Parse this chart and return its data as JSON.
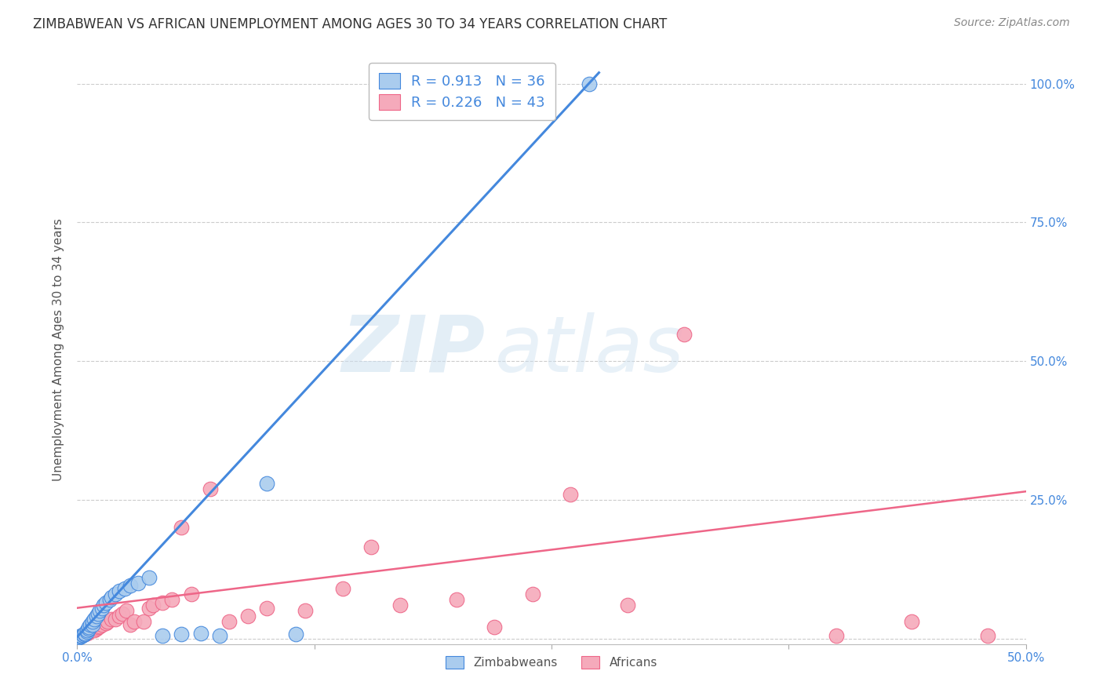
{
  "title": "ZIMBABWEAN VS AFRICAN UNEMPLOYMENT AMONG AGES 30 TO 34 YEARS CORRELATION CHART",
  "source": "Source: ZipAtlas.com",
  "ylabel": "Unemployment Among Ages 30 to 34 years",
  "xlim": [
    0.0,
    0.5
  ],
  "ylim": [
    -0.01,
    1.05
  ],
  "yticks_right": [
    0.25,
    0.5,
    0.75,
    1.0
  ],
  "ytick_right_labels": [
    "25.0%",
    "50.0%",
    "75.0%",
    "100.0%"
  ],
  "xticks": [
    0.0,
    0.125,
    0.25,
    0.375,
    0.5
  ],
  "xtick_labels": [
    "0.0%",
    "",
    "",
    "",
    "50.0%"
  ],
  "zim_color": "#aaccee",
  "afr_color": "#f5aabb",
  "zim_line_color": "#4488dd",
  "afr_line_color": "#ee6688",
  "legend_R_zim": "R = 0.913",
  "legend_N_zim": "N = 36",
  "legend_R_afr": "R = 0.226",
  "legend_N_afr": "N = 43",
  "zim_x": [
    0.001,
    0.002,
    0.002,
    0.003,
    0.003,
    0.004,
    0.004,
    0.005,
    0.005,
    0.006,
    0.006,
    0.007,
    0.008,
    0.008,
    0.009,
    0.01,
    0.011,
    0.012,
    0.013,
    0.014,
    0.015,
    0.017,
    0.018,
    0.02,
    0.022,
    0.025,
    0.028,
    0.032,
    0.038,
    0.045,
    0.055,
    0.065,
    0.075,
    0.1,
    0.115,
    0.27
  ],
  "zim_y": [
    0.002,
    0.003,
    0.005,
    0.006,
    0.007,
    0.008,
    0.01,
    0.012,
    0.015,
    0.018,
    0.02,
    0.025,
    0.025,
    0.03,
    0.035,
    0.04,
    0.045,
    0.05,
    0.055,
    0.06,
    0.065,
    0.07,
    0.075,
    0.08,
    0.085,
    0.09,
    0.095,
    0.1,
    0.11,
    0.005,
    0.008,
    0.01,
    0.005,
    0.28,
    0.008,
    1.0
  ],
  "afr_x": [
    0.003,
    0.005,
    0.006,
    0.007,
    0.008,
    0.009,
    0.01,
    0.011,
    0.012,
    0.013,
    0.015,
    0.016,
    0.018,
    0.02,
    0.022,
    0.024,
    0.026,
    0.028,
    0.03,
    0.035,
    0.038,
    0.04,
    0.045,
    0.05,
    0.055,
    0.06,
    0.07,
    0.08,
    0.09,
    0.1,
    0.12,
    0.14,
    0.155,
    0.17,
    0.2,
    0.22,
    0.24,
    0.26,
    0.29,
    0.32,
    0.4,
    0.44,
    0.48
  ],
  "afr_y": [
    0.006,
    0.01,
    0.012,
    0.015,
    0.018,
    0.015,
    0.018,
    0.02,
    0.022,
    0.025,
    0.028,
    0.03,
    0.035,
    0.035,
    0.04,
    0.045,
    0.05,
    0.025,
    0.03,
    0.03,
    0.055,
    0.06,
    0.065,
    0.07,
    0.2,
    0.08,
    0.27,
    0.03,
    0.04,
    0.055,
    0.05,
    0.09,
    0.165,
    0.06,
    0.07,
    0.02,
    0.08,
    0.26,
    0.06,
    0.548,
    0.005,
    0.03,
    0.005
  ],
  "zim_trend_x": [
    0.0,
    0.275
  ],
  "zim_trend_y": [
    0.003,
    1.02
  ],
  "afr_trend_x": [
    0.0,
    0.5
  ],
  "afr_trend_y": [
    0.055,
    0.265
  ],
  "watermark_zip": "ZIP",
  "watermark_atlas": "atlas",
  "background_color": "#ffffff",
  "grid_color": "#cccccc",
  "title_color": "#333333",
  "axis_label_color": "#4488dd",
  "ylabel_color": "#555555",
  "title_fontsize": 12,
  "label_fontsize": 11,
  "tick_fontsize": 11,
  "legend_fontsize": 13
}
